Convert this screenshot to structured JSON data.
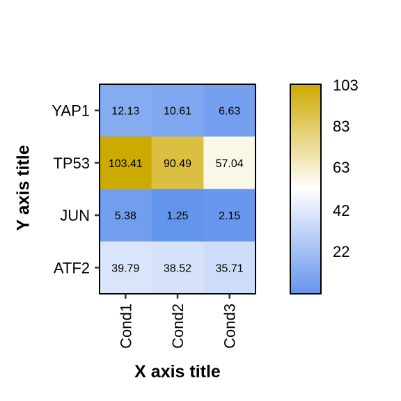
{
  "chart_data": {
    "type": "heatmap",
    "xlabel": "X axis title",
    "ylabel": "Y axis title",
    "x_categories": [
      "Cond1",
      "Cond2",
      "Cond3"
    ],
    "y_categories": [
      "YAP1",
      "TP53",
      "JUN",
      "ATF2"
    ],
    "values": [
      [
        12.13,
        10.61,
        6.63
      ],
      [
        103.41,
        90.49,
        57.04
      ],
      [
        5.38,
        1.25,
        2.15
      ],
      [
        39.79,
        38.52,
        35.71
      ]
    ],
    "colorbar": {
      "ticks": [
        103,
        83,
        63,
        42,
        22
      ],
      "range": [
        1.25,
        103.41
      ],
      "colors": {
        "low": "#6495ED",
        "mid": "#FFFFFF",
        "high": "#CDAA00"
      },
      "mid_value": 52.33
    },
    "grid": false,
    "legend_position": "right"
  }
}
